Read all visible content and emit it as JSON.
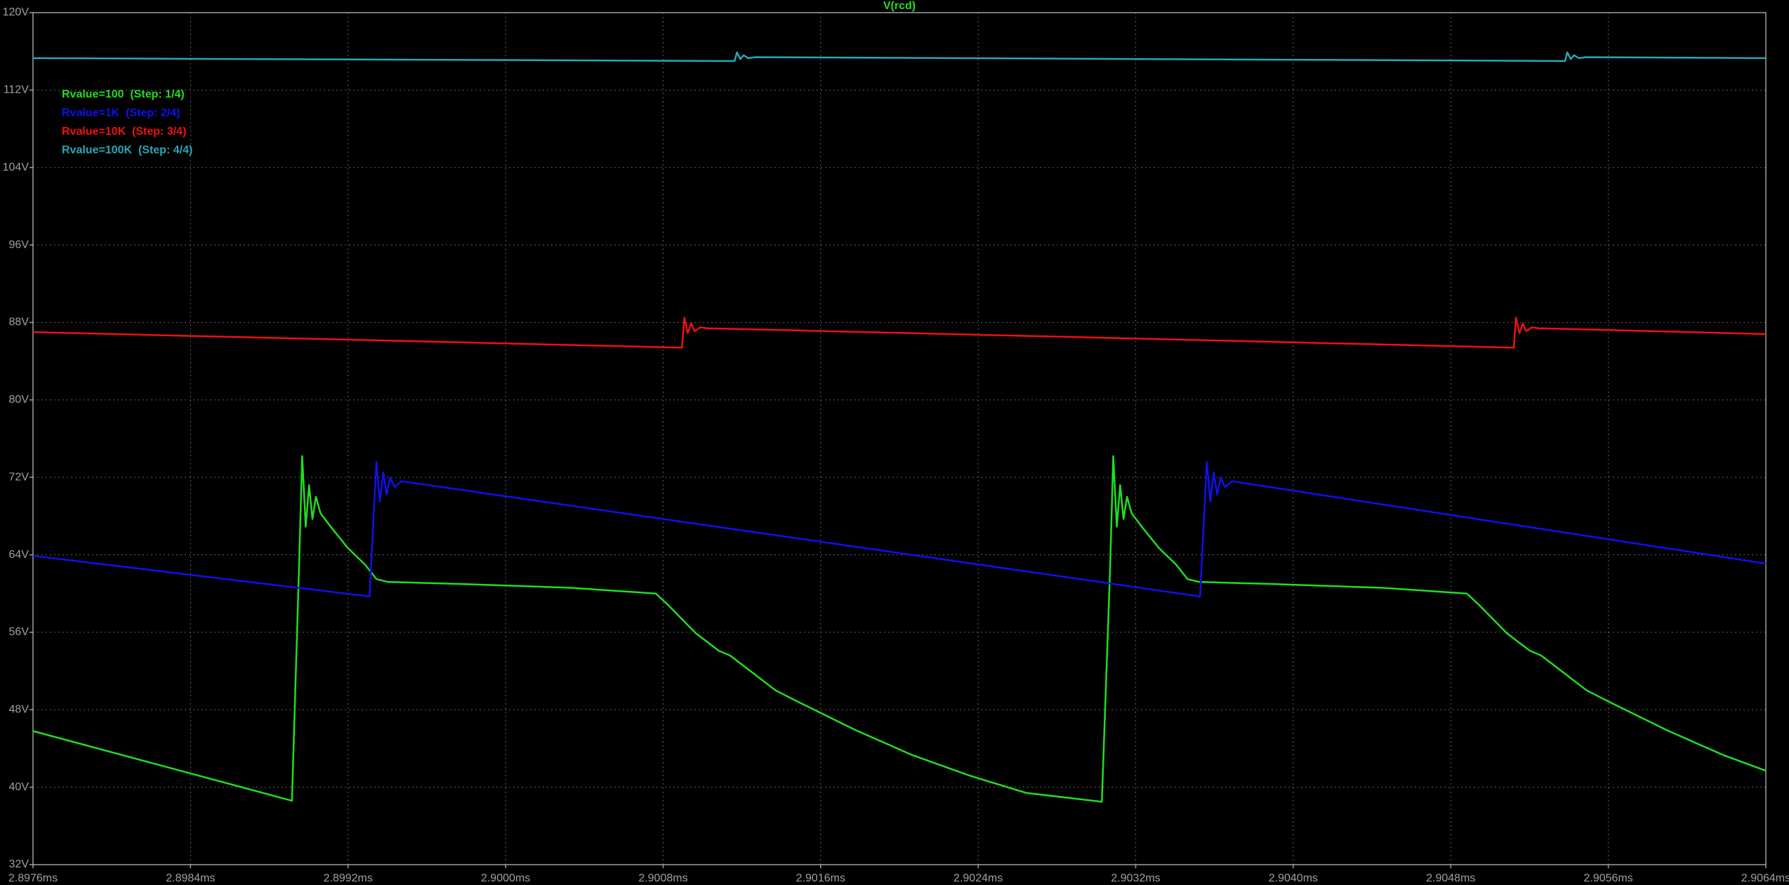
{
  "chart_data": {
    "type": "line",
    "title": "V(rcd)",
    "title_color": "#22dd22",
    "grid": true,
    "legend": "top-left",
    "xlim": [
      2.8976,
      2.9064
    ],
    "xticks": [
      {
        "value": 2.8976,
        "label": "2.8976ms"
      },
      {
        "value": 2.8984,
        "label": "2.8984ms"
      },
      {
        "value": 2.8992,
        "label": "2.8992ms"
      },
      {
        "value": 2.9,
        "label": "2.9000ms"
      },
      {
        "value": 2.9008,
        "label": "2.9008ms"
      },
      {
        "value": 2.9016,
        "label": "2.9016ms"
      },
      {
        "value": 2.9024,
        "label": "2.9024ms"
      },
      {
        "value": 2.9032,
        "label": "2.9032ms"
      },
      {
        "value": 2.904,
        "label": "2.9040ms"
      },
      {
        "value": 2.9048,
        "label": "2.9048ms"
      },
      {
        "value": 2.9056,
        "label": "2.9056ms"
      },
      {
        "value": 2.9064,
        "label": "2.9064ms"
      }
    ],
    "ylim": [
      32,
      120
    ],
    "yticks": [
      {
        "value": 32,
        "label": "32V"
      },
      {
        "value": 40,
        "label": "40V"
      },
      {
        "value": 48,
        "label": "48V"
      },
      {
        "value": 56,
        "label": "56V"
      },
      {
        "value": 64,
        "label": "64V"
      },
      {
        "value": 72,
        "label": "72V"
      },
      {
        "value": 80,
        "label": "80V"
      },
      {
        "value": 88,
        "label": "88V"
      },
      {
        "value": 96,
        "label": "96V"
      },
      {
        "value": 104,
        "label": "104V"
      },
      {
        "value": 112,
        "label": "112V"
      },
      {
        "value": 120,
        "label": "120V"
      }
    ],
    "series": [
      {
        "name": "Rvalue=100  (Step: 1/4)",
        "color": "#22dd22",
        "x": [
          2.8976,
          2.898915,
          2.89895,
          2.898967,
          2.898985,
          2.899002,
          2.899019,
          2.899037,
          2.89906,
          2.899112,
          2.899199,
          2.899286,
          2.899344,
          2.899402,
          2.899749,
          2.900329,
          2.900763,
          2.900821,
          2.900966,
          2.901082,
          2.90114,
          2.901256,
          2.901371,
          2.901487,
          2.901777,
          2.902067,
          2.902356,
          2.902646,
          2.903028,
          2.903069,
          2.903086,
          2.903104,
          2.903121,
          2.903138,
          2.903156,
          2.903179,
          2.903231,
          2.903318,
          2.903405,
          2.903463,
          2.903521,
          2.903868,
          2.904448,
          2.904882,
          2.90494,
          2.905085,
          2.905201,
          2.905259,
          2.905375,
          2.90549,
          2.905606,
          2.905896,
          2.906186,
          2.9064
        ],
        "values": [
          45.8,
          38.6,
          62,
          74.2,
          66.9,
          71.2,
          67.7,
          70.0,
          68.3,
          66.9,
          64.7,
          63.0,
          61.5,
          61.2,
          61.0,
          60.6,
          60.0,
          58.9,
          55.9,
          54.1,
          53.6,
          51.8,
          50.0,
          48.8,
          45.9,
          43.3,
          41.2,
          39.4,
          38.5,
          62,
          74.2,
          66.9,
          71.2,
          67.7,
          70.0,
          68.3,
          66.9,
          64.7,
          63.0,
          61.5,
          61.2,
          61.0,
          60.6,
          60.0,
          58.9,
          55.9,
          54.1,
          53.6,
          51.8,
          50.0,
          48.8,
          45.9,
          43.3,
          41.7
        ]
      },
      {
        "name": "Rvalue=1K  (Step: 2/4)",
        "color": "#1010ee",
        "x": [
          2.8976,
          2.899309,
          2.899344,
          2.899361,
          2.899379,
          2.899396,
          2.899413,
          2.899437,
          2.899471,
          2.903527,
          2.903561,
          2.903579,
          2.903596,
          2.903614,
          2.903631,
          2.903654,
          2.903689,
          2.9064
        ],
        "values": [
          63.9,
          59.7,
          73.6,
          69.5,
          72.5,
          70.2,
          72.0,
          71.0,
          71.6,
          59.7,
          73.6,
          69.5,
          72.5,
          70.2,
          72.0,
          71.0,
          71.6,
          63.1
        ]
      },
      {
        "name": "Rvalue=10K  (Step: 3/4)",
        "color": "#ee1111",
        "x": [
          2.8976,
          2.900896,
          2.900908,
          2.900925,
          2.900943,
          2.90096,
          2.900989,
          2.901024,
          2.90512,
          2.905131,
          2.905149,
          2.905166,
          2.905183,
          2.905212,
          2.905247,
          2.9064
        ],
        "values": [
          87.0,
          85.4,
          88.5,
          86.9,
          87.9,
          87.1,
          87.5,
          87.4,
          85.4,
          88.5,
          86.9,
          87.9,
          87.1,
          87.5,
          87.4,
          86.8
        ]
      },
      {
        "name": "Rvalue=100K  (Step: 4/4)",
        "color": "#2aa7b5",
        "x": [
          2.8976,
          2.901163,
          2.901175,
          2.901192,
          2.901209,
          2.901232,
          2.901267,
          2.90538,
          2.905392,
          2.905409,
          2.905426,
          2.90545,
          2.905485,
          2.9064
        ],
        "values": [
          115.3,
          115.0,
          115.9,
          115.2,
          115.6,
          115.3,
          115.4,
          115.0,
          115.9,
          115.2,
          115.6,
          115.3,
          115.4,
          115.3
        ]
      }
    ]
  }
}
